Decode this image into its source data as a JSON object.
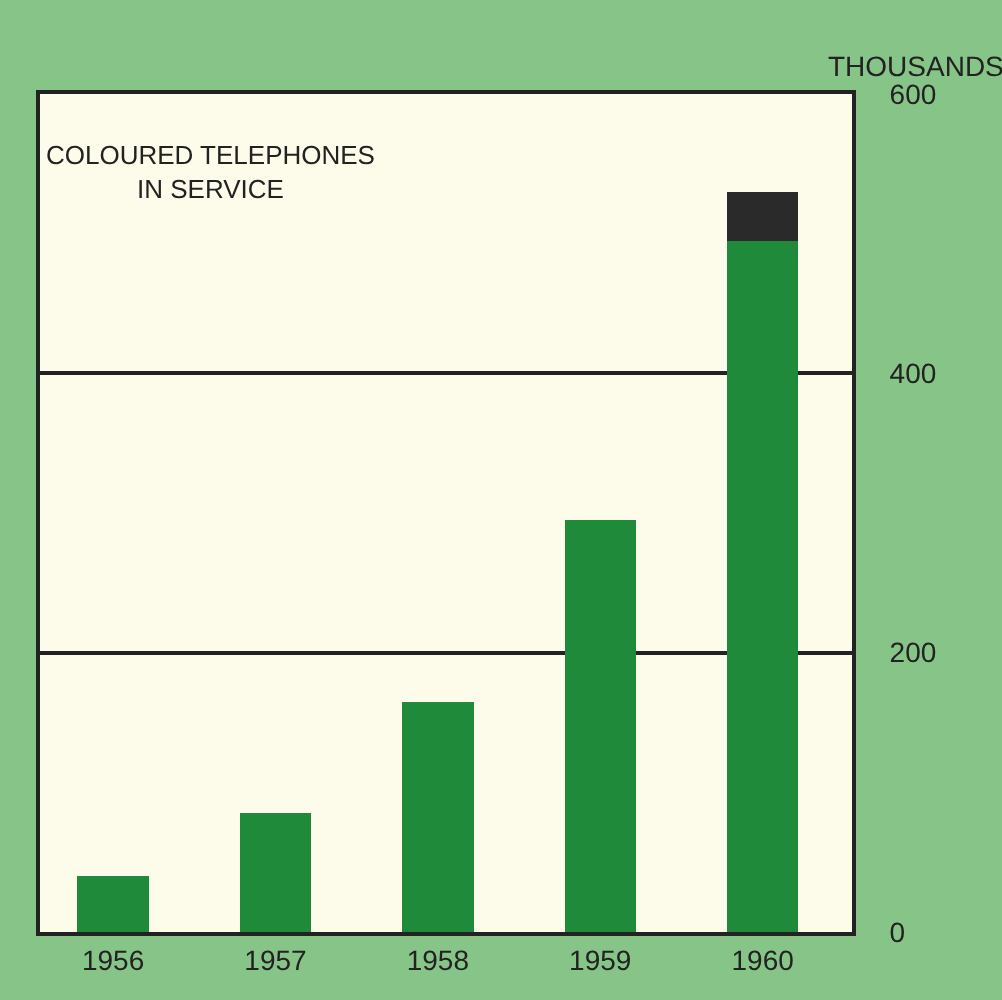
{
  "chart_data": {
    "type": "bar",
    "title": "COLOURED TELEPHONES\nIN SERVICE",
    "ylabel": "THOUSANDS",
    "categories": [
      "1956",
      "1957",
      "1958",
      "1959",
      "1960"
    ],
    "stacked": true,
    "series": [
      {
        "color": "#1f8a3a",
        "values": [
          40,
          85,
          165,
          295,
          495
        ]
      },
      {
        "color": "#2a2a2a",
        "values": [
          null,
          null,
          null,
          null,
          35
        ]
      }
    ],
    "ylim": [
      0,
      600
    ],
    "yticks": [
      0,
      200,
      400,
      600
    ],
    "grid": "y"
  }
}
